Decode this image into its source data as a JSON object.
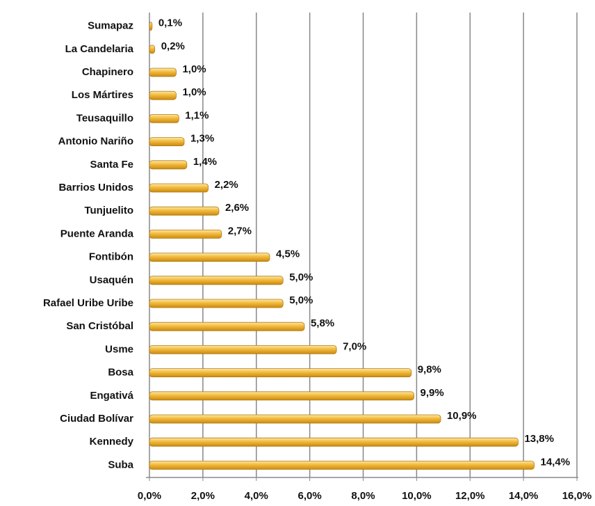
{
  "chart_data": {
    "type": "barh",
    "categories": [
      "Sumapaz",
      "La Candelaria",
      "Chapinero",
      "Los Mártires",
      "Teusaquillo",
      "Antonio Nariño",
      "Santa Fe",
      "Barrios Unidos",
      "Tunjuelito",
      "Puente Aranda",
      "Fontibón",
      "Usaquén",
      "Rafael Uribe Uribe",
      "San Cristóbal",
      "Usme",
      "Bosa",
      "Engativá",
      "Ciudad Bolívar",
      "Kennedy",
      "Suba"
    ],
    "values": [
      0.1,
      0.2,
      1.0,
      1.0,
      1.1,
      1.3,
      1.4,
      2.2,
      2.6,
      2.7,
      4.5,
      5.0,
      5.0,
      5.8,
      7.0,
      9.8,
      9.9,
      10.9,
      13.8,
      14.4
    ],
    "value_labels": [
      "0,1%",
      "0,2%",
      "1,0%",
      "1,0%",
      "1,1%",
      "1,3%",
      "1,4%",
      "2,2%",
      "2,6%",
      "2,7%",
      "4,5%",
      "5,0%",
      "5,0%",
      "5,8%",
      "7,0%",
      "9,8%",
      "9,9%",
      "10,9%",
      "13,8%",
      "14,4%"
    ],
    "color": "#f2b93b",
    "xlim": [
      0,
      16
    ],
    "xticks": [
      {
        "value": 0,
        "label": "0,0%"
      },
      {
        "value": 2,
        "label": "2,0%"
      },
      {
        "value": 4,
        "label": "4,0%"
      },
      {
        "value": 6,
        "label": "6,0%"
      },
      {
        "value": 8,
        "label": "8,0%"
      },
      {
        "value": 10,
        "label": "10,0%"
      },
      {
        "value": 12,
        "label": "12,0%"
      },
      {
        "value": 14,
        "label": "14,0%"
      },
      {
        "value": 16,
        "label": "16,0%"
      }
    ],
    "grid": true
  }
}
